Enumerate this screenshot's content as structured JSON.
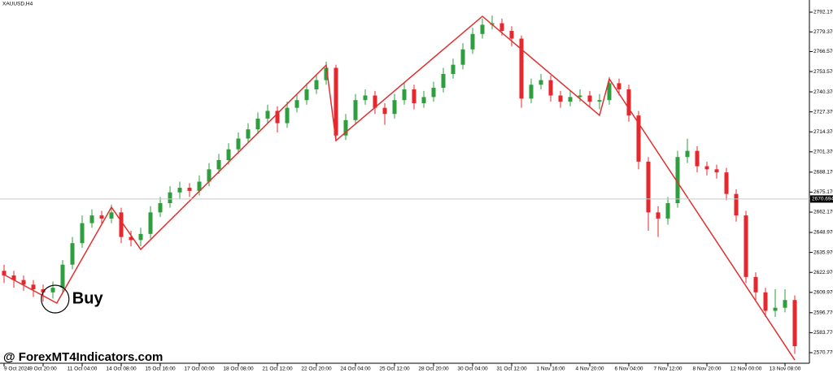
{
  "chart_data": {
    "type": "candlestick",
    "title": "XAUUSD,H4",
    "x": [
      "9 Oct 2024",
      null,
      null,
      null,
      "9 Oct 20:00",
      null,
      null,
      null,
      "11 Oct 04:00",
      null,
      null,
      null,
      "14 Oct 08:00",
      null,
      null,
      null,
      "15 Oct 16:00",
      null,
      null,
      null,
      "17 Oct 00:00",
      null,
      null,
      null,
      "18 Oct 08:00",
      null,
      null,
      null,
      "21 Oct 12:00",
      null,
      null,
      null,
      "22 Oct 20:00",
      null,
      null,
      null,
      "24 Oct 04:00",
      null,
      null,
      null,
      "25 Oct 12:00",
      null,
      null,
      null,
      "28 Oct 20:00",
      null,
      null,
      null,
      "30 Oct 04:00",
      null,
      null,
      null,
      "31 Oct 12:00",
      null,
      null,
      null,
      "1 Nov 16:00",
      null,
      null,
      null,
      "4 Nov 20:00",
      null,
      null,
      null,
      "6 Nov 04:00",
      null,
      null,
      null,
      "7 Nov 12:00",
      null,
      null,
      null,
      "8 Nov 20:00",
      null,
      null,
      null,
      "12 Nov 00:00",
      null,
      null,
      null,
      "13 Nov 08:00",
      null
    ],
    "open": [
      2624,
      2621,
      2618,
      2615,
      2612,
      2610,
      2613,
      2628,
      2642,
      2655,
      2660,
      2658,
      2662,
      2646,
      2644,
      2648,
      2662,
      2668,
      2675,
      2678,
      2676,
      2682,
      2690,
      2696,
      2703,
      2710,
      2716,
      2723,
      2728,
      2720,
      2730,
      2735,
      2742,
      2748,
      2756,
      2712,
      2722,
      2735,
      2738,
      2730,
      2726,
      2735,
      2742,
      2733,
      2737,
      2743,
      2752,
      2758,
      2768,
      2778,
      2784,
      2785,
      2780,
      2775,
      2736,
      2745,
      2748,
      2738,
      2734,
      2737,
      2738,
      2734,
      2735,
      2746,
      2742,
      2725,
      2695,
      2662,
      2658,
      2668,
      2698,
      2702,
      2692,
      2690,
      2688,
      2674,
      2660,
      2620,
      2610,
      2598,
      2600,
      2605
    ],
    "high": [
      2628,
      2624,
      2621,
      2618,
      2615,
      2617,
      2631,
      2646,
      2660,
      2664,
      2663,
      2667,
      2665,
      2650,
      2652,
      2666,
      2672,
      2679,
      2682,
      2681,
      2686,
      2694,
      2700,
      2707,
      2714,
      2720,
      2727,
      2732,
      2731,
      2734,
      2739,
      2746,
      2752,
      2760,
      2758,
      2726,
      2739,
      2742,
      2741,
      2733,
      2739,
      2746,
      2745,
      2741,
      2747,
      2756,
      2762,
      2772,
      2782,
      2788,
      2790,
      2788,
      2783,
      2777,
      2749,
      2752,
      2751,
      2741,
      2741,
      2742,
      2741,
      2739,
      2750,
      2749,
      2745,
      2728,
      2698,
      2666,
      2672,
      2702,
      2710,
      2705,
      2695,
      2693,
      2691,
      2677,
      2663,
      2623,
      2613,
      2612,
      2612,
      2608
    ],
    "low": [
      2616,
      2613,
      2611,
      2607,
      2604,
      2606,
      2610,
      2625,
      2639,
      2652,
      2654,
      2655,
      2642,
      2640,
      2640,
      2645,
      2659,
      2665,
      2671,
      2672,
      2673,
      2679,
      2687,
      2693,
      2700,
      2707,
      2713,
      2720,
      2714,
      2717,
      2727,
      2732,
      2739,
      2745,
      2708,
      2709,
      2719,
      2732,
      2726,
      2719,
      2723,
      2732,
      2729,
      2730,
      2734,
      2740,
      2749,
      2755,
      2765,
      2775,
      2781,
      2777,
      2770,
      2730,
      2733,
      2742,
      2734,
      2730,
      2731,
      2734,
      2730,
      2729,
      2732,
      2738,
      2721,
      2690,
      2650,
      2646,
      2654,
      2665,
      2694,
      2688,
      2686,
      2684,
      2670,
      2656,
      2616,
      2605,
      2594,
      2594,
      2597,
      2570
    ],
    "close": [
      2621,
      2618,
      2615,
      2612,
      2610,
      2613,
      2628,
      2642,
      2655,
      2660,
      2658,
      2662,
      2646,
      2644,
      2648,
      2662,
      2668,
      2675,
      2678,
      2676,
      2682,
      2690,
      2696,
      2703,
      2710,
      2716,
      2723,
      2728,
      2720,
      2730,
      2735,
      2742,
      2748,
      2756,
      2712,
      2722,
      2735,
      2738,
      2730,
      2726,
      2735,
      2742,
      2733,
      2737,
      2743,
      2752,
      2758,
      2768,
      2778,
      2784,
      2785,
      2780,
      2775,
      2736,
      2745,
      2748,
      2738,
      2734,
      2737,
      2738,
      2734,
      2735,
      2746,
      2742,
      2725,
      2695,
      2662,
      2658,
      2668,
      2698,
      2702,
      2692,
      2690,
      2688,
      2674,
      2660,
      2620,
      2610,
      2598,
      2600,
      2605,
      2575
    ],
    "up_color": "#2e9e3e",
    "down_color": "#e8262b",
    "zigzag": {
      "color": "#e03030",
      "x": [
        0,
        5.4,
        11,
        14,
        33,
        34,
        49,
        61,
        62,
        81
      ],
      "values": [
        2621.5,
        2603.0,
        2665.4,
        2637.9,
        2757.8,
        2708.7,
        2789.5,
        2725.1,
        2748.8,
        2566
      ]
    },
    "current_price": 2670.694,
    "ylim": [
      2563.9,
      2800.1
    ],
    "yticks": [
      {
        "value": 2792.17,
        "label": "2792.170"
      },
      {
        "value": 2779.37,
        "label": "2779.370"
      },
      {
        "value": 2766.57,
        "label": "2766.570"
      },
      {
        "value": 2753.57,
        "label": "2753.570"
      },
      {
        "value": 2740.37,
        "label": "2740.370"
      },
      {
        "value": 2727.37,
        "label": "2727.370"
      },
      {
        "value": 2714.37,
        "label": "2714.370"
      },
      {
        "value": 2701.37,
        "label": "2701.370"
      },
      {
        "value": 2688.17,
        "label": "2688.170"
      },
      {
        "value": 2675.17,
        "label": "2675.170"
      },
      {
        "value": 2662.17,
        "label": "2662.170"
      },
      {
        "value": 2648.97,
        "label": "2648.970"
      },
      {
        "value": 2635.97,
        "label": "2635.970"
      },
      {
        "value": 2622.97,
        "label": "2622.970"
      },
      {
        "value": 2609.97,
        "label": "2609.970"
      },
      {
        "value": 2596.77,
        "label": "2596.770"
      },
      {
        "value": 2583.77,
        "label": "2583.770"
      },
      {
        "value": 2570.77,
        "label": "2570.770"
      }
    ],
    "annotation": "Buy",
    "annotation_index": 5.4,
    "annotation_value": 2603.0,
    "watermark": "@ ForexMT4Indicators.com"
  }
}
